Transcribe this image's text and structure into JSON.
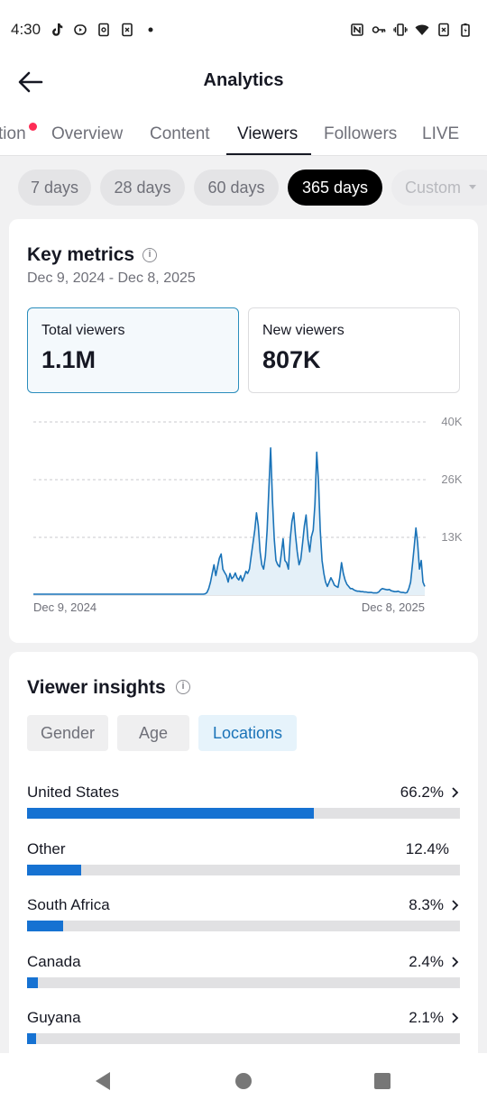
{
  "status_bar": {
    "time": "4:30"
  },
  "header": {
    "title": "Analytics"
  },
  "tabs": [
    {
      "label": "tion",
      "has_dot": true
    },
    {
      "label": "Overview"
    },
    {
      "label": "Content"
    },
    {
      "label": "Viewers",
      "active": true
    },
    {
      "label": "Followers"
    },
    {
      "label": "LIVE"
    }
  ],
  "date_filters": [
    {
      "label": "7 days"
    },
    {
      "label": "28 days"
    },
    {
      "label": "60 days"
    },
    {
      "label": "365 days",
      "active": true
    },
    {
      "label": "Custom",
      "disabled": true
    }
  ],
  "key_metrics": {
    "title": "Key metrics",
    "date_range": "Dec 9, 2024 - Dec 8, 2025",
    "total_viewers": {
      "label": "Total viewers",
      "value": "1.1M"
    },
    "new_viewers": {
      "label": "New viewers",
      "value": "807K"
    }
  },
  "chart_data": {
    "type": "area",
    "y_ticks": [
      "40K",
      "26K",
      "13K"
    ],
    "ylim": [
      0,
      40000
    ],
    "x_labels": {
      "start": "Dec 9, 2024",
      "end": "Dec 8, 2025"
    },
    "series": [
      {
        "values": [
          200,
          200,
          200,
          200,
          200,
          200,
          200,
          200,
          200,
          200,
          200,
          200,
          200,
          200,
          200,
          200,
          200,
          200,
          200,
          200,
          200,
          200,
          200,
          200,
          200,
          200,
          200,
          200,
          200,
          200,
          200,
          200,
          200,
          200,
          200,
          200,
          200,
          200,
          200,
          200,
          200,
          200,
          200,
          200,
          200,
          200,
          200,
          200,
          200,
          200,
          200,
          200,
          200,
          200,
          200,
          200,
          200,
          200,
          200,
          200,
          200,
          200,
          200,
          200,
          200,
          200,
          200,
          200,
          200,
          200,
          200,
          200,
          200,
          200,
          200,
          200,
          200,
          200,
          200,
          200,
          200,
          200,
          200,
          200,
          200,
          200,
          200,
          200,
          200,
          200,
          200,
          200,
          200,
          200,
          200,
          200,
          200,
          300,
          600,
          1500,
          3000,
          5000,
          7000,
          4500,
          6500,
          8500,
          9500,
          6000,
          5200,
          4500,
          3000,
          5000,
          3800,
          4200,
          5100,
          4000,
          3500,
          4500,
          3200,
          4200,
          5500,
          5000,
          6000,
          9000,
          12000,
          15000,
          19000,
          16000,
          10000,
          7000,
          6000,
          9000,
          15000,
          25000,
          34000,
          22000,
          13000,
          8000,
          7000,
          6500,
          9500,
          13000,
          8000,
          7500,
          6000,
          13000,
          17000,
          19000,
          14000,
          10000,
          7000,
          8200,
          12000,
          16000,
          18500,
          13000,
          10000,
          13500,
          15000,
          21000,
          33000,
          26000,
          15000,
          8000,
          5000,
          3000,
          2000,
          3000,
          4000,
          3200,
          2300,
          2000,
          1800,
          4000,
          7500,
          5000,
          3500,
          2500,
          2000,
          1500,
          1500,
          1200,
          1000,
          900,
          900,
          800,
          800,
          700,
          700,
          600,
          600,
          600,
          500,
          500,
          500,
          700,
          1200,
          1500,
          1400,
          1300,
          1200,
          1300,
          1000,
          900,
          800,
          800,
          900,
          700,
          600,
          600,
          500,
          600,
          1500,
          3000,
          7000,
          11000,
          15500,
          12000,
          6000,
          8000,
          3000,
          2000
        ]
      }
    ]
  },
  "viewer_insights": {
    "title": "Viewer insights",
    "filters": [
      {
        "label": "Gender"
      },
      {
        "label": "Age"
      },
      {
        "label": "Locations",
        "active": true
      }
    ],
    "locations": [
      {
        "name": "United States",
        "pct": "66.2%",
        "value": 66.2,
        "chevron": true
      },
      {
        "name": "Other",
        "pct": "12.4%",
        "value": 12.4,
        "chevron": false
      },
      {
        "name": "South Africa",
        "pct": "8.3%",
        "value": 8.3,
        "chevron": true
      },
      {
        "name": "Canada",
        "pct": "2.4%",
        "value": 2.4,
        "chevron": true
      },
      {
        "name": "Guyana",
        "pct": "2.1%",
        "value": 2.1,
        "chevron": true
      }
    ]
  },
  "colors": {
    "accent": "#1672d2",
    "chart_line": "#1a73b8",
    "notification": "#fe2c55"
  }
}
